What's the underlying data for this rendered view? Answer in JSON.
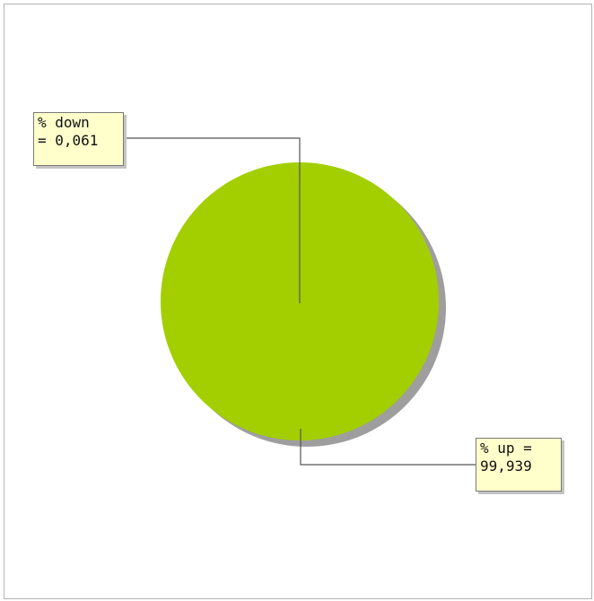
{
  "chart_data": {
    "type": "pie",
    "title": "",
    "slices": [
      {
        "label": "% down",
        "value": 0.061,
        "color": "#000000"
      },
      {
        "label": "% up",
        "value": 99.939,
        "color": "#a3cf00"
      }
    ],
    "labels": {
      "down": "% down\n= 0,061",
      "up": "% up =\n99,939"
    },
    "shadow_color": "#9e9e9e",
    "leader_color": "#555555"
  }
}
